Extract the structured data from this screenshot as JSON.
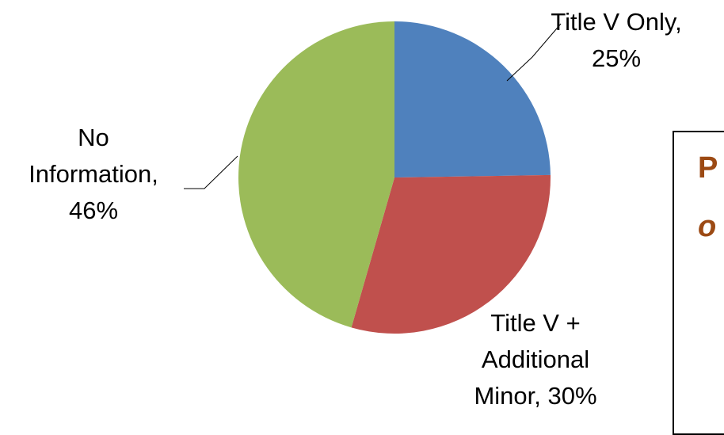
{
  "chart_data": {
    "type": "pie",
    "slices": [
      {
        "label_lines": [
          "Title V Only,",
          "25%"
        ],
        "value": 25,
        "color": "#4f81bd"
      },
      {
        "label_lines": [
          "Title V +",
          "Additional",
          "Minor, 30%"
        ],
        "value": 30,
        "color": "#c0504d"
      },
      {
        "label_lines": [
          "No",
          "Information,",
          "46%"
        ],
        "value": 46,
        "color": "#9bbb59"
      }
    ]
  },
  "side_panel": {
    "line1": "P",
    "line2": "o"
  }
}
